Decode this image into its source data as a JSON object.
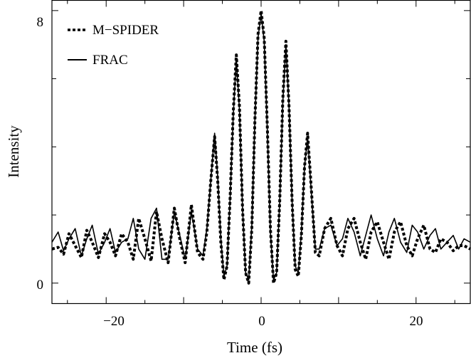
{
  "chart_data": {
    "type": "line",
    "xlabel": "Time (fs)",
    "ylabel": "Intensity",
    "xlim": [
      -27,
      27
    ],
    "ylim": [
      -0.6,
      8.3
    ],
    "x_ticks": [
      -20,
      0,
      20
    ],
    "x_tick_labels": [
      "−20",
      "0",
      "20"
    ],
    "y_ticks": [
      0,
      8
    ],
    "y_tick_labels": [
      "0",
      "8"
    ],
    "grid": false,
    "legend_position": "top-left",
    "legend": [
      {
        "label": "M−SPIDER",
        "style": "dotted"
      },
      {
        "label": "FRAC",
        "style": "solid"
      }
    ],
    "series": [
      {
        "name": "M−SPIDER",
        "style": "dotted",
        "color": "#000000",
        "x": [
          -27,
          -26.2,
          -25.5,
          -24.8,
          -24.0,
          -23.2,
          -22.5,
          -21.8,
          -21.0,
          -20.2,
          -19.5,
          -18.8,
          -18.0,
          -17.2,
          -16.5,
          -15.8,
          -15.0,
          -14.2,
          -13.5,
          -12.8,
          -12.0,
          -11.2,
          -10.5,
          -9.8,
          -9.0,
          -8.2,
          -7.5,
          -7.0,
          -6.5,
          -6.0,
          -5.6,
          -5.2,
          -4.8,
          -4.4,
          -4.0,
          -3.6,
          -3.2,
          -2.8,
          -2.4,
          -2.0,
          -1.6,
          -1.2,
          -0.8,
          -0.4,
          0.0,
          0.4,
          0.8,
          1.2,
          1.6,
          2.0,
          2.4,
          2.8,
          3.2,
          3.6,
          4.0,
          4.4,
          4.8,
          5.2,
          5.6,
          6.0,
          6.5,
          7.0,
          7.5,
          8.2,
          9.0,
          9.8,
          10.5,
          11.2,
          12.0,
          12.8,
          13.5,
          14.2,
          15.0,
          15.8,
          16.5,
          17.2,
          18.0,
          18.8,
          19.5,
          20.2,
          21.0,
          21.8,
          22.5,
          23.2,
          24.0,
          24.8,
          25.5,
          26.2,
          27.0
        ],
        "y": [
          1.0,
          1.05,
          0.85,
          1.45,
          1.1,
          0.75,
          1.55,
          1.2,
          0.75,
          1.45,
          1.2,
          0.8,
          1.45,
          1.2,
          0.7,
          1.9,
          1.3,
          0.65,
          2.1,
          1.3,
          0.6,
          2.2,
          1.3,
          0.6,
          2.3,
          0.9,
          0.7,
          1.5,
          3.0,
          4.3,
          3.0,
          1.2,
          0.1,
          0.5,
          2.5,
          5.0,
          6.7,
          5.2,
          2.2,
          0.3,
          0.0,
          1.6,
          4.8,
          7.3,
          8.0,
          7.2,
          4.6,
          1.6,
          0.0,
          0.3,
          2.4,
          5.4,
          7.1,
          5.2,
          2.4,
          0.4,
          0.2,
          1.4,
          3.4,
          4.4,
          2.7,
          0.9,
          0.8,
          1.6,
          1.9,
          1.1,
          0.8,
          1.6,
          1.9,
          1.2,
          0.7,
          1.5,
          1.8,
          1.2,
          0.7,
          1.5,
          1.8,
          1.1,
          0.8,
          1.3,
          1.7,
          1.0,
          0.9,
          1.3,
          1.2,
          0.95,
          1.1,
          1.1,
          1.0
        ]
      },
      {
        "name": "FRAC",
        "style": "solid",
        "color": "#000000",
        "x": [
          -27,
          -26.2,
          -25.5,
          -24.8,
          -24.0,
          -23.2,
          -22.5,
          -21.8,
          -21.0,
          -20.2,
          -19.5,
          -18.8,
          -18.0,
          -17.2,
          -16.5,
          -15.8,
          -15.0,
          -14.2,
          -13.5,
          -12.8,
          -12.0,
          -11.2,
          -10.5,
          -9.8,
          -9.0,
          -8.2,
          -7.5,
          -7.0,
          -6.5,
          -6.0,
          -5.6,
          -5.2,
          -4.8,
          -4.4,
          -4.0,
          -3.6,
          -3.2,
          -2.8,
          -2.4,
          -2.0,
          -1.6,
          -1.2,
          -0.8,
          -0.4,
          0.0,
          0.4,
          0.8,
          1.2,
          1.6,
          2.0,
          2.4,
          2.8,
          3.2,
          3.6,
          4.0,
          4.4,
          4.8,
          5.2,
          5.6,
          6.0,
          6.5,
          7.0,
          7.5,
          8.2,
          9.0,
          9.8,
          10.5,
          11.2,
          12.0,
          12.8,
          13.5,
          14.2,
          15.0,
          15.8,
          16.5,
          17.2,
          18.0,
          18.8,
          19.5,
          20.2,
          21.0,
          21.8,
          22.5,
          23.2,
          24.0,
          24.8,
          25.5,
          26.2,
          27.0
        ],
        "y": [
          1.2,
          1.5,
          0.95,
          1.3,
          1.6,
          0.8,
          1.3,
          1.7,
          0.85,
          1.2,
          1.6,
          0.9,
          1.2,
          1.3,
          1.9,
          1.0,
          0.7,
          1.9,
          2.2,
          0.7,
          0.7,
          2.1,
          1.4,
          0.7,
          2.1,
          1.0,
          0.8,
          1.6,
          3.0,
          4.4,
          3.1,
          1.3,
          0.2,
          0.5,
          2.5,
          4.9,
          6.6,
          5.1,
          2.2,
          0.3,
          0.1,
          1.7,
          4.8,
          7.2,
          7.9,
          7.1,
          4.5,
          1.5,
          0.1,
          0.3,
          2.4,
          5.3,
          7.0,
          5.2,
          2.4,
          0.5,
          0.3,
          1.5,
          3.4,
          4.3,
          2.6,
          1.0,
          1.0,
          1.6,
          1.7,
          1.1,
          1.3,
          1.9,
          1.5,
          0.8,
          1.4,
          2.0,
          1.3,
          0.8,
          1.5,
          1.9,
          1.2,
          0.9,
          1.7,
          1.5,
          1.0,
          1.4,
          1.6,
          1.0,
          1.2,
          1.4,
          1.0,
          1.3,
          1.2
        ]
      }
    ]
  }
}
